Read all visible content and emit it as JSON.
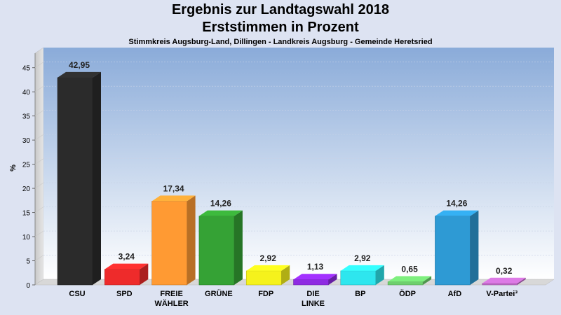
{
  "chart_data": {
    "type": "bar",
    "title": "Ergebnis zur Landtagswahl 2018",
    "title2": "Erststimmen in Prozent",
    "subtitle": "Stimmkreis Augsburg-Land, Dillingen - Landkreis Augsburg - Gemeinde Heretsried",
    "ylabel": "%",
    "ylim": [
      0,
      48
    ],
    "yticks": [
      "0",
      "5",
      "10",
      "15",
      "20",
      "25",
      "30",
      "35",
      "40",
      "45"
    ],
    "categories": [
      [
        "CSU"
      ],
      [
        "SPD"
      ],
      [
        "FREIE",
        "WÄHLER"
      ],
      [
        "GRÜNE"
      ],
      [
        "FDP"
      ],
      [
        "DIE",
        "LINKE"
      ],
      [
        "BP"
      ],
      [
        "ÖDP"
      ],
      [
        "AfD"
      ],
      [
        "V-Partei³"
      ]
    ],
    "values": [
      42.95,
      3.24,
      17.34,
      14.26,
      2.92,
      1.13,
      2.92,
      0.65,
      14.26,
      0.32
    ],
    "value_labels": [
      "42,95",
      "3,24",
      "17,34",
      "14,26",
      "2,92",
      "1,13",
      "2,92",
      "0,65",
      "14,26",
      "0,32"
    ],
    "colors": [
      "#2b2b2b",
      "#ee2b2b",
      "#ff9a33",
      "#35a235",
      "#f5f21c",
      "#8e2be2",
      "#2ee6ee",
      "#6ed06e",
      "#2e9ad4",
      "#c06ac8"
    ],
    "grid": true
  }
}
